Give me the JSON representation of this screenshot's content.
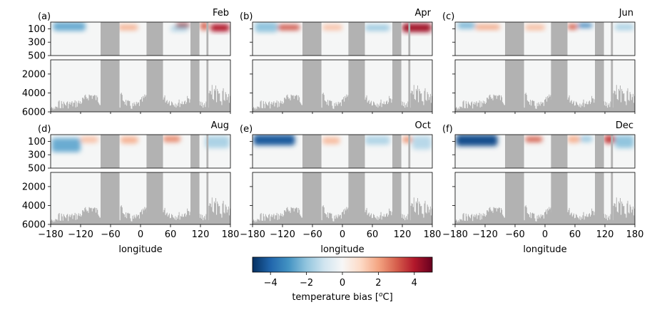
{
  "chart_data": {
    "type": "heatmap",
    "shared": {
      "x_ticks": [
        -180,
        -120,
        -60,
        0,
        60,
        120,
        180
      ],
      "x_tick_labels": [
        "−180",
        "−120",
        "−60",
        "0",
        "60",
        "120",
        "180"
      ],
      "xlabel": "longitude",
      "xlim": [
        -180,
        180
      ],
      "upper_depth_ticks": [
        100,
        300,
        500
      ],
      "upper_depth_lim": [
        0,
        500
      ],
      "lower_depth_ticks": [
        2000,
        4000,
        6000
      ],
      "lower_depth_lim": [
        500,
        6000
      ],
      "land_longitudes": [
        [
          -80,
          -42
        ],
        [
          12,
          45
        ],
        [
          100,
          118
        ],
        [
          132,
          136
        ]
      ]
    },
    "panels": [
      {
        "label": "(a)",
        "month": "Feb",
        "anomalies": [
          {
            "lon": [
              -175,
              -110
            ],
            "depth": [
              0,
              130
            ],
            "bias": -2.5
          },
          {
            "lon": [
              -45,
              -5
            ],
            "depth": [
              40,
              120
            ],
            "bias": 1.8
          },
          {
            "lon": [
              60,
              95
            ],
            "depth": [
              60,
              140
            ],
            "bias": -1.5
          },
          {
            "lon": [
              70,
              98
            ],
            "depth": [
              20,
              80
            ],
            "bias": 4.5
          },
          {
            "lon": [
              140,
              178
            ],
            "depth": [
              30,
              140
            ],
            "bias": 4.0
          },
          {
            "lon": [
              120,
              135
            ],
            "depth": [
              0,
              120
            ],
            "bias": 3.0
          }
        ]
      },
      {
        "label": "(b)",
        "month": "Apr",
        "anomalies": [
          {
            "lon": [
              -175,
              -130
            ],
            "depth": [
              0,
              150
            ],
            "bias": -2.0
          },
          {
            "lon": [
              -130,
              -85
            ],
            "depth": [
              40,
              120
            ],
            "bias": 3.2
          },
          {
            "lon": [
              -40,
              0
            ],
            "depth": [
              40,
              120
            ],
            "bias": 1.5
          },
          {
            "lon": [
              45,
              95
            ],
            "depth": [
              40,
              130
            ],
            "bias": -1.8
          },
          {
            "lon": [
              120,
              178
            ],
            "depth": [
              20,
              150
            ],
            "bias": 4.2
          }
        ]
      },
      {
        "label": "(c)",
        "month": "Jun",
        "anomalies": [
          {
            "lon": [
              -175,
              -140
            ],
            "depth": [
              0,
              100
            ],
            "bias": -2.2
          },
          {
            "lon": [
              -140,
              -90
            ],
            "depth": [
              40,
              110
            ],
            "bias": 2.0
          },
          {
            "lon": [
              -40,
              0
            ],
            "depth": [
              40,
              120
            ],
            "bias": 1.6
          },
          {
            "lon": [
              45,
              65
            ],
            "depth": [
              30,
              110
            ],
            "bias": 3.0
          },
          {
            "lon": [
              65,
              95
            ],
            "depth": [
              20,
              80
            ],
            "bias": -3.5
          },
          {
            "lon": [
              140,
              178
            ],
            "depth": [
              30,
              120
            ],
            "bias": -1.6
          }
        ]
      },
      {
        "label": "(d)",
        "month": "Aug",
        "anomalies": [
          {
            "lon": [
              -178,
              -120
            ],
            "depth": [
              50,
              260
            ],
            "bias": -2.5
          },
          {
            "lon": [
              -120,
              -85
            ],
            "depth": [
              30,
              120
            ],
            "bias": 1.5
          },
          {
            "lon": [
              -40,
              -5
            ],
            "depth": [
              30,
              130
            ],
            "bias": 1.8
          },
          {
            "lon": [
              45,
              80
            ],
            "depth": [
              20,
              110
            ],
            "bias": 2.4
          },
          {
            "lon": [
              130,
              178
            ],
            "depth": [
              20,
              200
            ],
            "bias": -1.6
          }
        ]
      },
      {
        "label": "(e)",
        "month": "Oct",
        "anomalies": [
          {
            "lon": [
              -178,
              -95
            ],
            "depth": [
              0,
              160
            ],
            "bias": -4.2
          },
          {
            "lon": [
              -40,
              -5
            ],
            "depth": [
              40,
              140
            ],
            "bias": 1.6
          },
          {
            "lon": [
              45,
              95
            ],
            "depth": [
              20,
              150
            ],
            "bias": -1.5
          },
          {
            "lon": [
              120,
              140
            ],
            "depth": [
              30,
              120
            ],
            "bias": 2.2
          },
          {
            "lon": [
              140,
              178
            ],
            "depth": [
              20,
              220
            ],
            "bias": -1.4
          }
        ]
      },
      {
        "label": "(f)",
        "month": "Dec",
        "anomalies": [
          {
            "lon": [
              -178,
              -95
            ],
            "depth": [
              0,
              170
            ],
            "bias": -4.4
          },
          {
            "lon": [
              -40,
              -5
            ],
            "depth": [
              30,
              110
            ],
            "bias": 3.0
          },
          {
            "lon": [
              45,
              70
            ],
            "depth": [
              20,
              120
            ],
            "bias": 1.8
          },
          {
            "lon": [
              70,
              95
            ],
            "depth": [
              20,
              110
            ],
            "bias": -1.8
          },
          {
            "lon": [
              118,
              140
            ],
            "depth": [
              10,
              130
            ],
            "bias": 3.5
          },
          {
            "lon": [
              140,
              178
            ],
            "depth": [
              10,
              200
            ],
            "bias": -2.0
          }
        ]
      }
    ],
    "colorbar": {
      "label": "temperature bias [",
      "label_sup": "o",
      "label_tail": "C]",
      "range": [
        -5,
        5
      ],
      "ticks": [
        -4,
        -2,
        0,
        2,
        4
      ],
      "tick_labels": [
        "−4",
        "−2",
        "0",
        "2",
        "4"
      ],
      "colormap": "RdBu_r"
    },
    "colors": {
      "land": "#b2b2b2",
      "neutral": "#f5f6f6",
      "cold": "#053061",
      "warm": "#67001f"
    }
  }
}
